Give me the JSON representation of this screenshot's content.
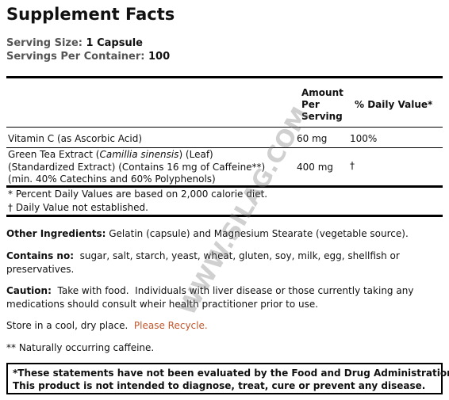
{
  "title": "Supplement Facts",
  "serving": [
    {
      "label": "Serving Size:",
      "value": "1 Capsule"
    },
    {
      "label": "Servings Per Container:",
      "value": "100"
    }
  ],
  "table": {
    "header": {
      "amount": [
        "Amount",
        "Per",
        "Serving"
      ],
      "daily_value": "% Daily Value*"
    },
    "rows": [
      {
        "name": [
          "Vitamin C (as Ascorbic Acid)"
        ],
        "amount": "60 mg",
        "daily_value": "100%"
      },
      {
        "name": [
          "Green Tea Extract (",
          "Camillia sinensis",
          ") (Leaf)",
          "(Standardized Extract) (Contains 16 mg of Caffeine**)",
          "(min. 40% Catechins and 60% Polyphenols)"
        ],
        "amount": "400 mg",
        "daily_value": "†"
      }
    ],
    "footnotes": [
      "* Percent Daily Values are based on 2,000 calorie diet.",
      "† Daily Value not established."
    ]
  },
  "other_ingredients": {
    "label": "Other Ingredients:",
    "text": " Gelatin (capsule) and Magnesium Stearate (vegetable source)."
  },
  "contains_no": {
    "label": "Contains no:",
    "text": "  sugar, salt, starch, yeast, wheat, gluten, soy, milk, egg, shellfish or preservatives."
  },
  "caution": {
    "label": "Caution:",
    "text": "  Take with food.  Individuals with liver disease or those currently taking any medications should consult wheir health practitioner prior to use."
  },
  "storage": {
    "text": "Store in a cool, dry place.  ",
    "link": "Please Recycle."
  },
  "note": "** Naturally occurring caffeine.",
  "disclaimer": [
    "*These statements have not been evaluated by the Food and Drug Administration.",
    "This product is not intended to diagnose, treat, cure or prevent any disease."
  ],
  "watermark": "WWW.SILAG.COM"
}
